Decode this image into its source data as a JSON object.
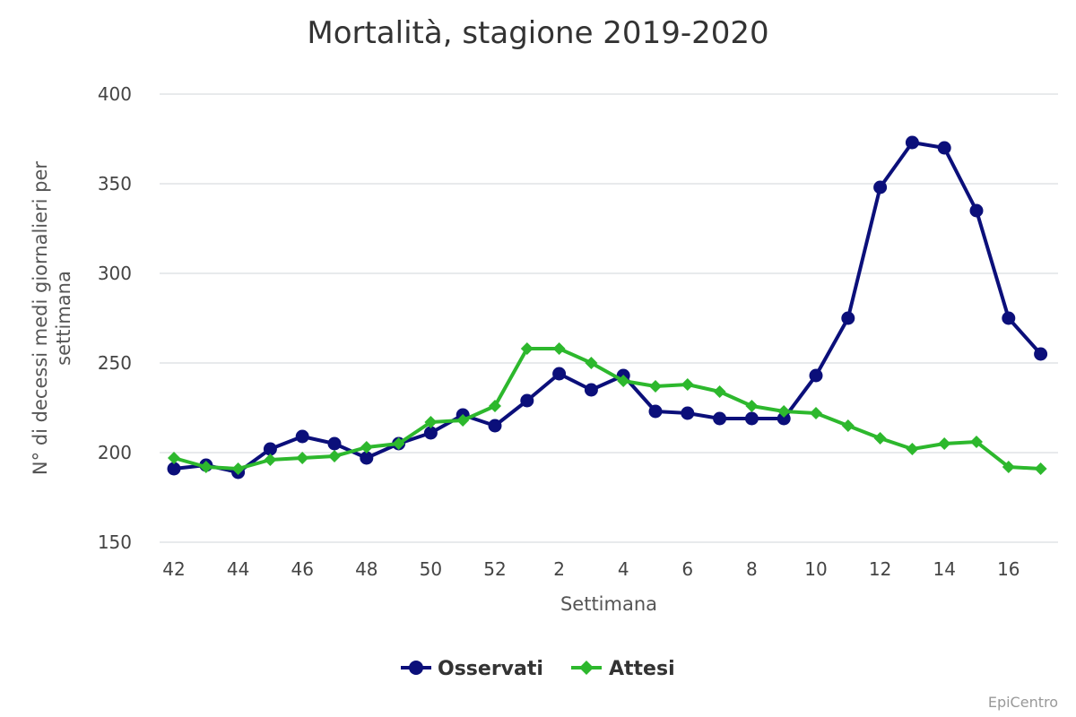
{
  "chart_data": {
    "type": "line",
    "title": "Mortalità, stagione 2019-2020",
    "xlabel": "Settimana",
    "ylabel_lines": [
      "N° di decessi medi giornalieri per",
      "settimana"
    ],
    "ylim": [
      150,
      400
    ],
    "yticks": [
      150,
      200,
      250,
      300,
      350,
      400
    ],
    "grid": true,
    "legend_position": "bottom-center",
    "x": [
      "42",
      "43",
      "44",
      "45",
      "46",
      "47",
      "48",
      "49",
      "50",
      "51",
      "52",
      "1",
      "2",
      "3",
      "4",
      "5",
      "6",
      "7",
      "8",
      "9",
      "10",
      "11",
      "12",
      "13",
      "14",
      "15",
      "16",
      "17"
    ],
    "x_tick_labels": [
      "42",
      "44",
      "46",
      "48",
      "50",
      "52",
      "2",
      "4",
      "6",
      "8",
      "10",
      "12",
      "14",
      "16"
    ],
    "series": [
      {
        "name": "Osservati",
        "color": "#0b0f7a",
        "marker": "circle",
        "values": [
          191,
          193,
          189,
          202,
          209,
          205,
          197,
          205,
          211,
          221,
          215,
          229,
          244,
          235,
          243,
          223,
          222,
          219,
          219,
          219,
          243,
          275,
          348,
          373,
          370,
          335,
          275,
          255
        ]
      },
      {
        "name": "Attesi",
        "color": "#2db82d",
        "marker": "diamond",
        "values": [
          197,
          192,
          191,
          196,
          197,
          198,
          203,
          205,
          217,
          218,
          226,
          258,
          258,
          250,
          240,
          237,
          238,
          234,
          226,
          223,
          222,
          215,
          208,
          202,
          205,
          206,
          192,
          191
        ]
      }
    ]
  },
  "credit": "EpiCentro"
}
